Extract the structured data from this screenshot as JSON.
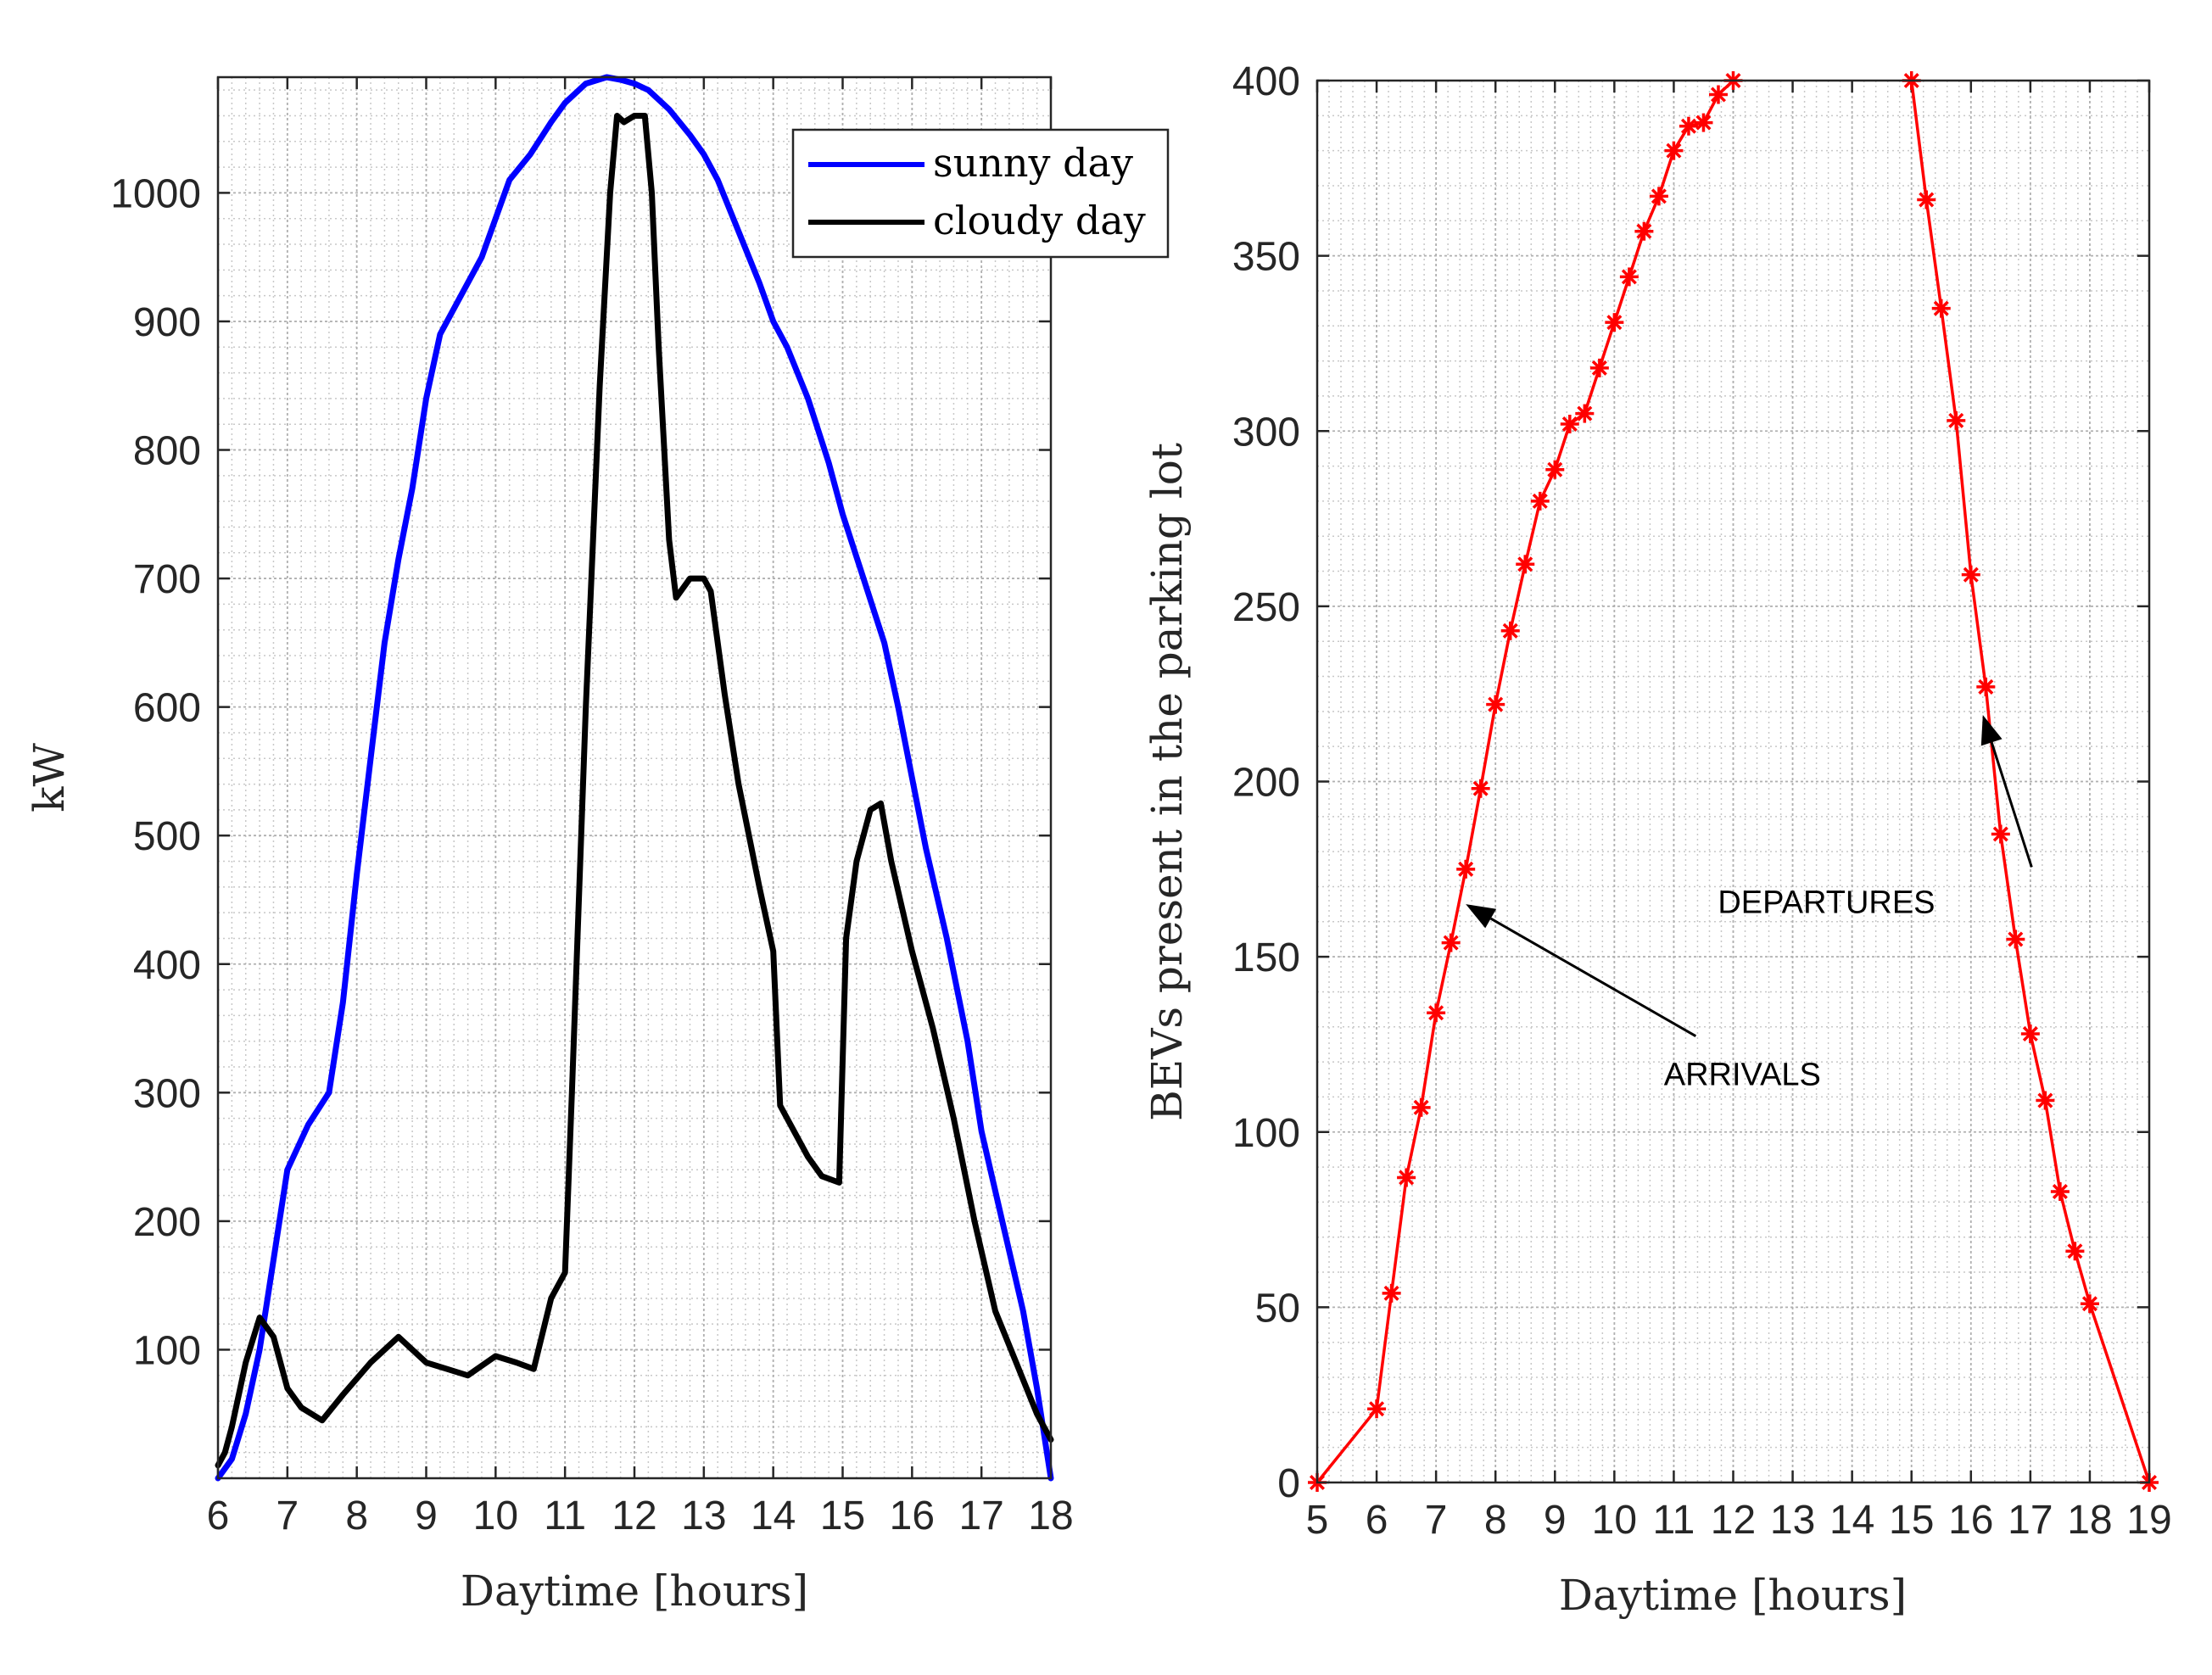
{
  "chart_data": [
    {
      "type": "line",
      "xlabel": "Daytime [hours]",
      "ylabel": "kW",
      "xlim": [
        6,
        18
      ],
      "ylim": [
        0,
        1090
      ],
      "xticks": [
        6,
        7,
        8,
        9,
        10,
        11,
        12,
        13,
        14,
        15,
        16,
        17,
        18
      ],
      "yticks": [
        100,
        200,
        300,
        400,
        500,
        600,
        700,
        800,
        900,
        1000
      ],
      "legend": {
        "location": "top-right"
      },
      "grid": true,
      "series": [
        {
          "name": "sunny day",
          "color": "#0000ff",
          "x": [
            6,
            6.2,
            6.4,
            6.6,
            6.8,
            7,
            7.3,
            7.6,
            7.8,
            8,
            8.2,
            8.4,
            8.6,
            8.8,
            9,
            9.2,
            9.5,
            9.8,
            10,
            10.2,
            10.5,
            10.8,
            11,
            11.3,
            11.6,
            11.8,
            12,
            12.2,
            12.5,
            12.8,
            13,
            13.2,
            13.5,
            13.8,
            14,
            14.2,
            14.5,
            14.8,
            15,
            15.3,
            15.6,
            15.8,
            16,
            16.2,
            16.5,
            16.8,
            17,
            17.3,
            17.6,
            17.8,
            18
          ],
          "y": [
            0,
            15,
            50,
            100,
            170,
            240,
            275,
            300,
            370,
            470,
            560,
            650,
            715,
            770,
            840,
            890,
            920,
            950,
            980,
            1010,
            1030,
            1055,
            1070,
            1085,
            1090,
            1088,
            1085,
            1080,
            1065,
            1045,
            1030,
            1010,
            970,
            930,
            900,
            880,
            840,
            790,
            750,
            700,
            650,
            600,
            545,
            490,
            420,
            340,
            270,
            200,
            130,
            70,
            0
          ]
        },
        {
          "name": "cloudy day",
          "color": "#000000",
          "x": [
            6,
            6.1,
            6.2,
            6.4,
            6.6,
            6.8,
            7,
            7.2,
            7.5,
            7.8,
            8.2,
            8.6,
            9,
            9.3,
            9.6,
            10,
            10.3,
            10.55,
            10.8,
            11,
            11.1,
            11.3,
            11.5,
            11.65,
            11.75,
            11.85,
            12,
            12.15,
            12.25,
            12.35,
            12.5,
            12.6,
            12.8,
            13,
            13.1,
            13.3,
            13.5,
            13.8,
            14,
            14.1,
            14.3,
            14.5,
            14.7,
            14.95,
            15.05,
            15.2,
            15.4,
            15.55,
            15.7,
            16,
            16.3,
            16.6,
            16.9,
            17.2,
            17.5,
            17.8,
            18
          ],
          "y": [
            10,
            20,
            40,
            90,
            125,
            110,
            70,
            55,
            45,
            65,
            90,
            110,
            90,
            85,
            80,
            95,
            90,
            85,
            140,
            160,
            300,
            600,
            850,
            1000,
            1060,
            1055,
            1060,
            1060,
            1000,
            880,
            730,
            685,
            700,
            700,
            690,
            610,
            540,
            460,
            410,
            290,
            270,
            250,
            235,
            230,
            420,
            480,
            520,
            525,
            480,
            410,
            350,
            280,
            200,
            130,
            90,
            50,
            30
          ]
        }
      ]
    },
    {
      "type": "line",
      "xlabel": "Daytime [hours]",
      "ylabel": "BEVs present in the parking lot",
      "xlim": [
        5,
        19
      ],
      "ylim": [
        0,
        400
      ],
      "xticks": [
        5,
        6,
        7,
        8,
        9,
        10,
        11,
        12,
        13,
        14,
        15,
        16,
        17,
        18,
        19
      ],
      "yticks": [
        0,
        50,
        100,
        150,
        200,
        250,
        300,
        350,
        400
      ],
      "grid": true,
      "annotations": [
        {
          "text": "ARRIVALS",
          "x": 9.8,
          "y": 123,
          "arrow_to": [
            7.5,
            165
          ]
        },
        {
          "text": "DEPARTURES",
          "x": 9.6,
          "y": 178,
          "arrow_to": [
            16.2,
            219
          ]
        }
      ],
      "series": [
        {
          "name": "arrivals",
          "color": "#ff0000",
          "marker": "asterisk",
          "x": [
            5,
            6,
            6.25,
            6.5,
            6.75,
            7,
            7.25,
            7.5,
            7.75,
            8,
            8.25,
            8.5,
            8.75,
            9,
            9.25,
            9.5,
            9.75,
            10,
            10.25,
            10.5,
            10.75,
            11,
            11.25,
            11.5,
            11.75,
            12
          ],
          "y": [
            0,
            21,
            54,
            87,
            107,
            134,
            154,
            175,
            198,
            222,
            243,
            262,
            280,
            289,
            302,
            305,
            318,
            331,
            344,
            357,
            367,
            380,
            387,
            388,
            396,
            400
          ]
        },
        {
          "name": "departures",
          "color": "#ff0000",
          "marker": "asterisk",
          "x": [
            15,
            15.25,
            15.5,
            15.75,
            16,
            16.25,
            16.5,
            16.75,
            17,
            17.25,
            17.5,
            17.75,
            18,
            19
          ],
          "y": [
            400,
            366,
            335,
            303,
            259,
            227,
            185,
            155,
            128,
            109,
            83,
            66,
            51,
            0
          ]
        }
      ]
    }
  ]
}
